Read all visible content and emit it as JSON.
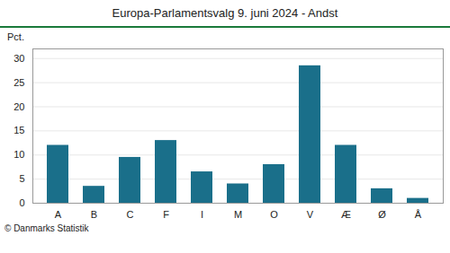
{
  "chart_data": {
    "type": "bar",
    "title": "Europa-Parlamentsvalg 9. juni 2024 - Andst",
    "categories": [
      "A",
      "B",
      "C",
      "F",
      "I",
      "M",
      "O",
      "V",
      "Æ",
      "Ø",
      "Å"
    ],
    "values": [
      12.0,
      3.5,
      9.5,
      13.0,
      6.5,
      4.0,
      8.0,
      28.5,
      12.0,
      3.0,
      1.0
    ],
    "color": "#1a6f8a",
    "ylabel": "Pct.",
    "ylim": [
      0,
      32
    ],
    "yticks": [
      0,
      5,
      10,
      15,
      20,
      25,
      30
    ],
    "grid": true,
    "caption": "© Danmarks Statistik"
  }
}
